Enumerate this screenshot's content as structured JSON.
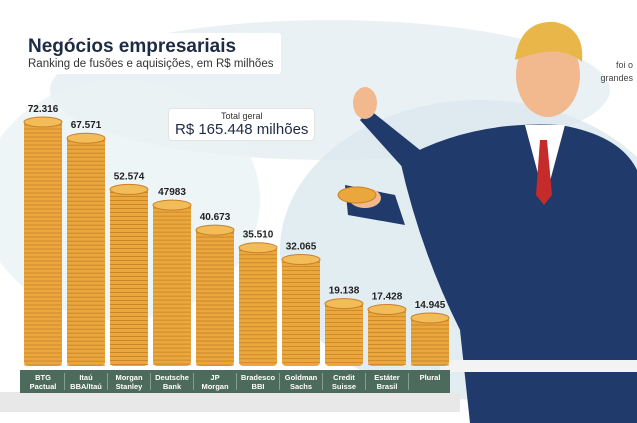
{
  "header": {
    "title": "Negócios empresariais",
    "subtitle": "Ranking de fusões e aquisições, em R$ milhões"
  },
  "total": {
    "label": "Total geral",
    "value": "R$ 165.448 milhões"
  },
  "side_text": [
    "foi o",
    "grandes"
  ],
  "chart_data": {
    "type": "bar",
    "title": "Negócios empresariais",
    "subtitle": "Ranking de fusões e aquisições, em R$ milhões",
    "categories": [
      [
        "BTG",
        "Pactual"
      ],
      [
        "Itaú",
        "BBA/Itaú"
      ],
      [
        "Morgan",
        "Stanley"
      ],
      [
        "Deutsche",
        "Bank"
      ],
      [
        "JP",
        "Morgan"
      ],
      [
        "Bradesco",
        "BBI"
      ],
      [
        "Goldman",
        "Sachs"
      ],
      [
        "Credit",
        "Suisse"
      ],
      [
        "Estáter",
        "Brasil"
      ],
      [
        "Plural",
        ""
      ]
    ],
    "values": [
      72316,
      67571,
      52574,
      47983,
      40673,
      35510,
      32065,
      19138,
      17428,
      14945
    ],
    "value_labels": [
      "72.316",
      "67.571",
      "52.574",
      "47983",
      "40.673",
      "35.510",
      "32.065",
      "19.138",
      "17.428",
      "14.945"
    ],
    "ylim": [
      0,
      75000
    ],
    "xlabel": "",
    "ylabel": "R$ milhões",
    "grid": false,
    "colors": {
      "coin": "#e9a73c",
      "coin_dark": "#c9802a",
      "band": "#4d6b5c"
    }
  }
}
